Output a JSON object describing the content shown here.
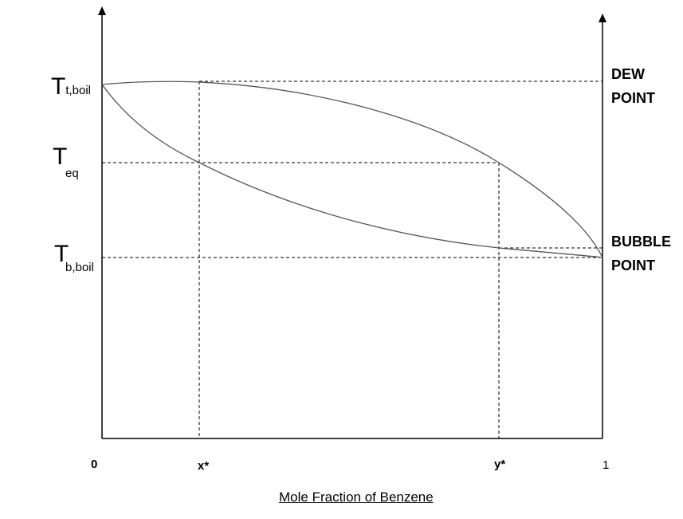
{
  "y_labels": {
    "t_boil": {
      "main": "T",
      "sub": "t,boil"
    },
    "t_eq": {
      "main": "T",
      "sub": "eq"
    },
    "b_boil": {
      "main": "T",
      "sub": "b,boil"
    }
  },
  "x_ticks": {
    "zero": "0",
    "x_star": "x*",
    "y_star": "y*",
    "one": "1"
  },
  "right_labels": {
    "dew": [
      "DEW",
      "POINT"
    ],
    "bubble": [
      "BUBBLE",
      "POINT"
    ]
  },
  "x_axis_title": "Mole Fraction of Benzene",
  "colors": {
    "curve": "#555555",
    "axis": "#000000",
    "guide": "#000000"
  }
}
